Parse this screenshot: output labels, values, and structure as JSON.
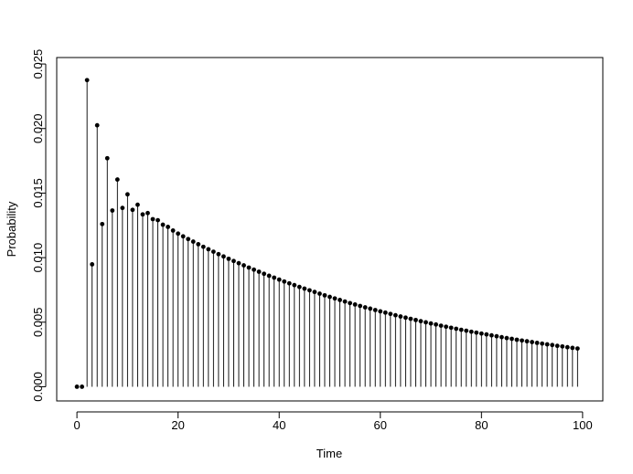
{
  "chart_data": {
    "type": "scatter",
    "style": "stems with filled point markers (R type='h' plus points)",
    "title": "",
    "xlabel": "Time",
    "ylabel": "Probability",
    "xlim": [
      -4,
      104
    ],
    "ylim": [
      -0.0011,
      0.0255
    ],
    "xticks": [
      0,
      20,
      40,
      60,
      80,
      100
    ],
    "xtick_labels": [
      "0",
      "20",
      "40",
      "60",
      "80",
      "100"
    ],
    "yticks": [
      0.0,
      0.005,
      0.01,
      0.015,
      0.02,
      0.025
    ],
    "ytick_labels": [
      "0.000",
      "0.005",
      "0.010",
      "0.015",
      "0.020",
      "0.025"
    ],
    "grid": false,
    "legend": "none",
    "color": "#000000",
    "x": [
      0,
      1,
      2,
      3,
      4,
      5,
      6,
      7,
      8,
      9,
      10,
      11,
      12,
      13,
      14,
      15,
      16,
      17,
      18,
      19,
      20,
      21,
      22,
      23,
      24,
      25,
      26,
      27,
      28,
      29,
      30,
      31,
      32,
      33,
      34,
      35,
      36,
      37,
      38,
      39,
      40,
      41,
      42,
      43,
      44,
      45,
      46,
      47,
      48,
      49,
      50,
      51,
      52,
      53,
      54,
      55,
      56,
      57,
      58,
      59,
      60,
      61,
      62,
      63,
      64,
      65,
      66,
      67,
      68,
      69,
      70,
      71,
      72,
      73,
      74,
      75,
      76,
      77,
      78,
      79,
      80,
      81,
      82,
      83,
      84,
      85,
      86,
      87,
      88,
      89,
      90,
      91,
      92,
      93,
      94,
      95,
      96,
      97,
      98,
      99
    ],
    "y": [
      0.0,
      0.0,
      0.02375,
      0.00948,
      0.02025,
      0.0126,
      0.0177,
      0.01365,
      0.01605,
      0.01385,
      0.0149,
      0.0137,
      0.0141,
      0.01335,
      0.01345,
      0.01298,
      0.0129,
      0.01255,
      0.01238,
      0.0121,
      0.01186,
      0.01165,
      0.01144,
      0.01124,
      0.01104,
      0.01084,
      0.01065,
      0.01046,
      0.01027,
      0.01009,
      0.00991,
      0.00974,
      0.00957,
      0.0094,
      0.00923,
      0.00907,
      0.00891,
      0.00875,
      0.0086,
      0.00845,
      0.0083,
      0.00815,
      0.00801,
      0.00787,
      0.00773,
      0.0076,
      0.00747,
      0.00734,
      0.00721,
      0.00708,
      0.00696,
      0.00684,
      0.00672,
      0.0066,
      0.00648,
      0.00637,
      0.00626,
      0.00615,
      0.00605,
      0.00594,
      0.00584,
      0.00574,
      0.00564,
      0.00554,
      0.00544,
      0.00535,
      0.00526,
      0.00517,
      0.00508,
      0.00499,
      0.0049,
      0.00482,
      0.00473,
      0.00465,
      0.00457,
      0.00449,
      0.00441,
      0.00434,
      0.00426,
      0.00419,
      0.00412,
      0.00405,
      0.00398,
      0.00391,
      0.00384,
      0.00377,
      0.00371,
      0.00364,
      0.00358,
      0.00352,
      0.00346,
      0.0034,
      0.00334,
      0.00328,
      0.00323,
      0.00317,
      0.00312,
      0.00306,
      0.00301,
      0.00296
    ]
  }
}
